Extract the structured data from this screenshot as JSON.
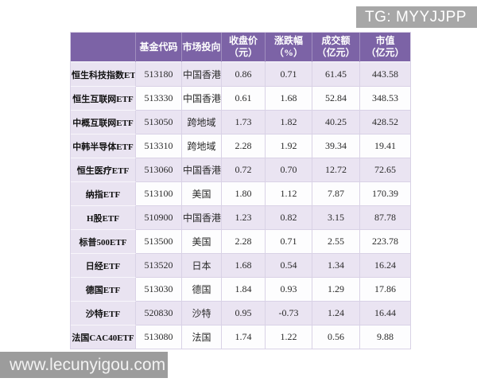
{
  "badge": {
    "text": "TG: MYYJJPP"
  },
  "watermark": {
    "text": "www.lecunyigou.com"
  },
  "colors": {
    "header_bg": "#7c63a6",
    "header_text": "#ffffff",
    "stripe_bg": "#eae4f2",
    "plain_bg": "#fdfdfe",
    "name_col_bg": "#e9e3f1",
    "border": "#d9d2e6",
    "text": "#2a2a2a",
    "name_text": "#111111",
    "badge_bg": "#a7a7a7",
    "badge_text": "#ffffff",
    "watermark_bg": "#9c9c9c",
    "watermark_text": "#f2f2f2"
  },
  "chart_data": {
    "type": "table",
    "columns": [
      {
        "key": "name",
        "label": "",
        "sub": ""
      },
      {
        "key": "code",
        "label": "基金代码",
        "sub": ""
      },
      {
        "key": "market",
        "label": "市场投向",
        "sub": ""
      },
      {
        "key": "close",
        "label": "收盘价",
        "sub": "（元）"
      },
      {
        "key": "change",
        "label": "涨跌幅",
        "sub": "（%）"
      },
      {
        "key": "turnover",
        "label": "成交额",
        "sub": "（亿元）"
      },
      {
        "key": "mcap",
        "label": "市值",
        "sub": "（亿元）"
      }
    ],
    "rows": [
      {
        "name": "恒生科技指数ETF",
        "code": "513180",
        "market": "中国香港",
        "close": "0.86",
        "change": "0.71",
        "turnover": "61.45",
        "mcap": "443.58"
      },
      {
        "name": "恒生互联网ETF",
        "code": "513330",
        "market": "中国香港",
        "close": "0.61",
        "change": "1.68",
        "turnover": "52.84",
        "mcap": "348.53"
      },
      {
        "name": "中概互联网ETF",
        "code": "513050",
        "market": "跨地域",
        "close": "1.73",
        "change": "1.82",
        "turnover": "40.25",
        "mcap": "428.52"
      },
      {
        "name": "中韩半导体ETF",
        "code": "513310",
        "market": "跨地域",
        "close": "2.28",
        "change": "1.92",
        "turnover": "39.34",
        "mcap": "19.41"
      },
      {
        "name": "恒生医疗ETF",
        "code": "513060",
        "market": "中国香港",
        "close": "0.72",
        "change": "0.70",
        "turnover": "12.72",
        "mcap": "72.65"
      },
      {
        "name": "纳指ETF",
        "code": "513100",
        "market": "美国",
        "close": "1.80",
        "change": "1.12",
        "turnover": "7.87",
        "mcap": "170.39"
      },
      {
        "name": "H股ETF",
        "code": "510900",
        "market": "中国香港",
        "close": "1.23",
        "change": "0.82",
        "turnover": "3.15",
        "mcap": "87.78"
      },
      {
        "name": "标普500ETF",
        "code": "513500",
        "market": "美国",
        "close": "2.28",
        "change": "0.71",
        "turnover": "2.55",
        "mcap": "223.78"
      },
      {
        "name": "日经ETF",
        "code": "513520",
        "market": "日本",
        "close": "1.68",
        "change": "0.54",
        "turnover": "1.34",
        "mcap": "16.24"
      },
      {
        "name": "德国ETF",
        "code": "513030",
        "market": "德国",
        "close": "1.84",
        "change": "0.93",
        "turnover": "1.29",
        "mcap": "17.86"
      },
      {
        "name": "沙特ETF",
        "code": "520830",
        "market": "沙特",
        "close": "0.95",
        "change": "-0.73",
        "turnover": "1.24",
        "mcap": "16.44"
      },
      {
        "name": "法国CAC40ETF",
        "code": "513080",
        "market": "法国",
        "close": "1.74",
        "change": "1.22",
        "turnover": "0.56",
        "mcap": "9.88"
      }
    ]
  }
}
